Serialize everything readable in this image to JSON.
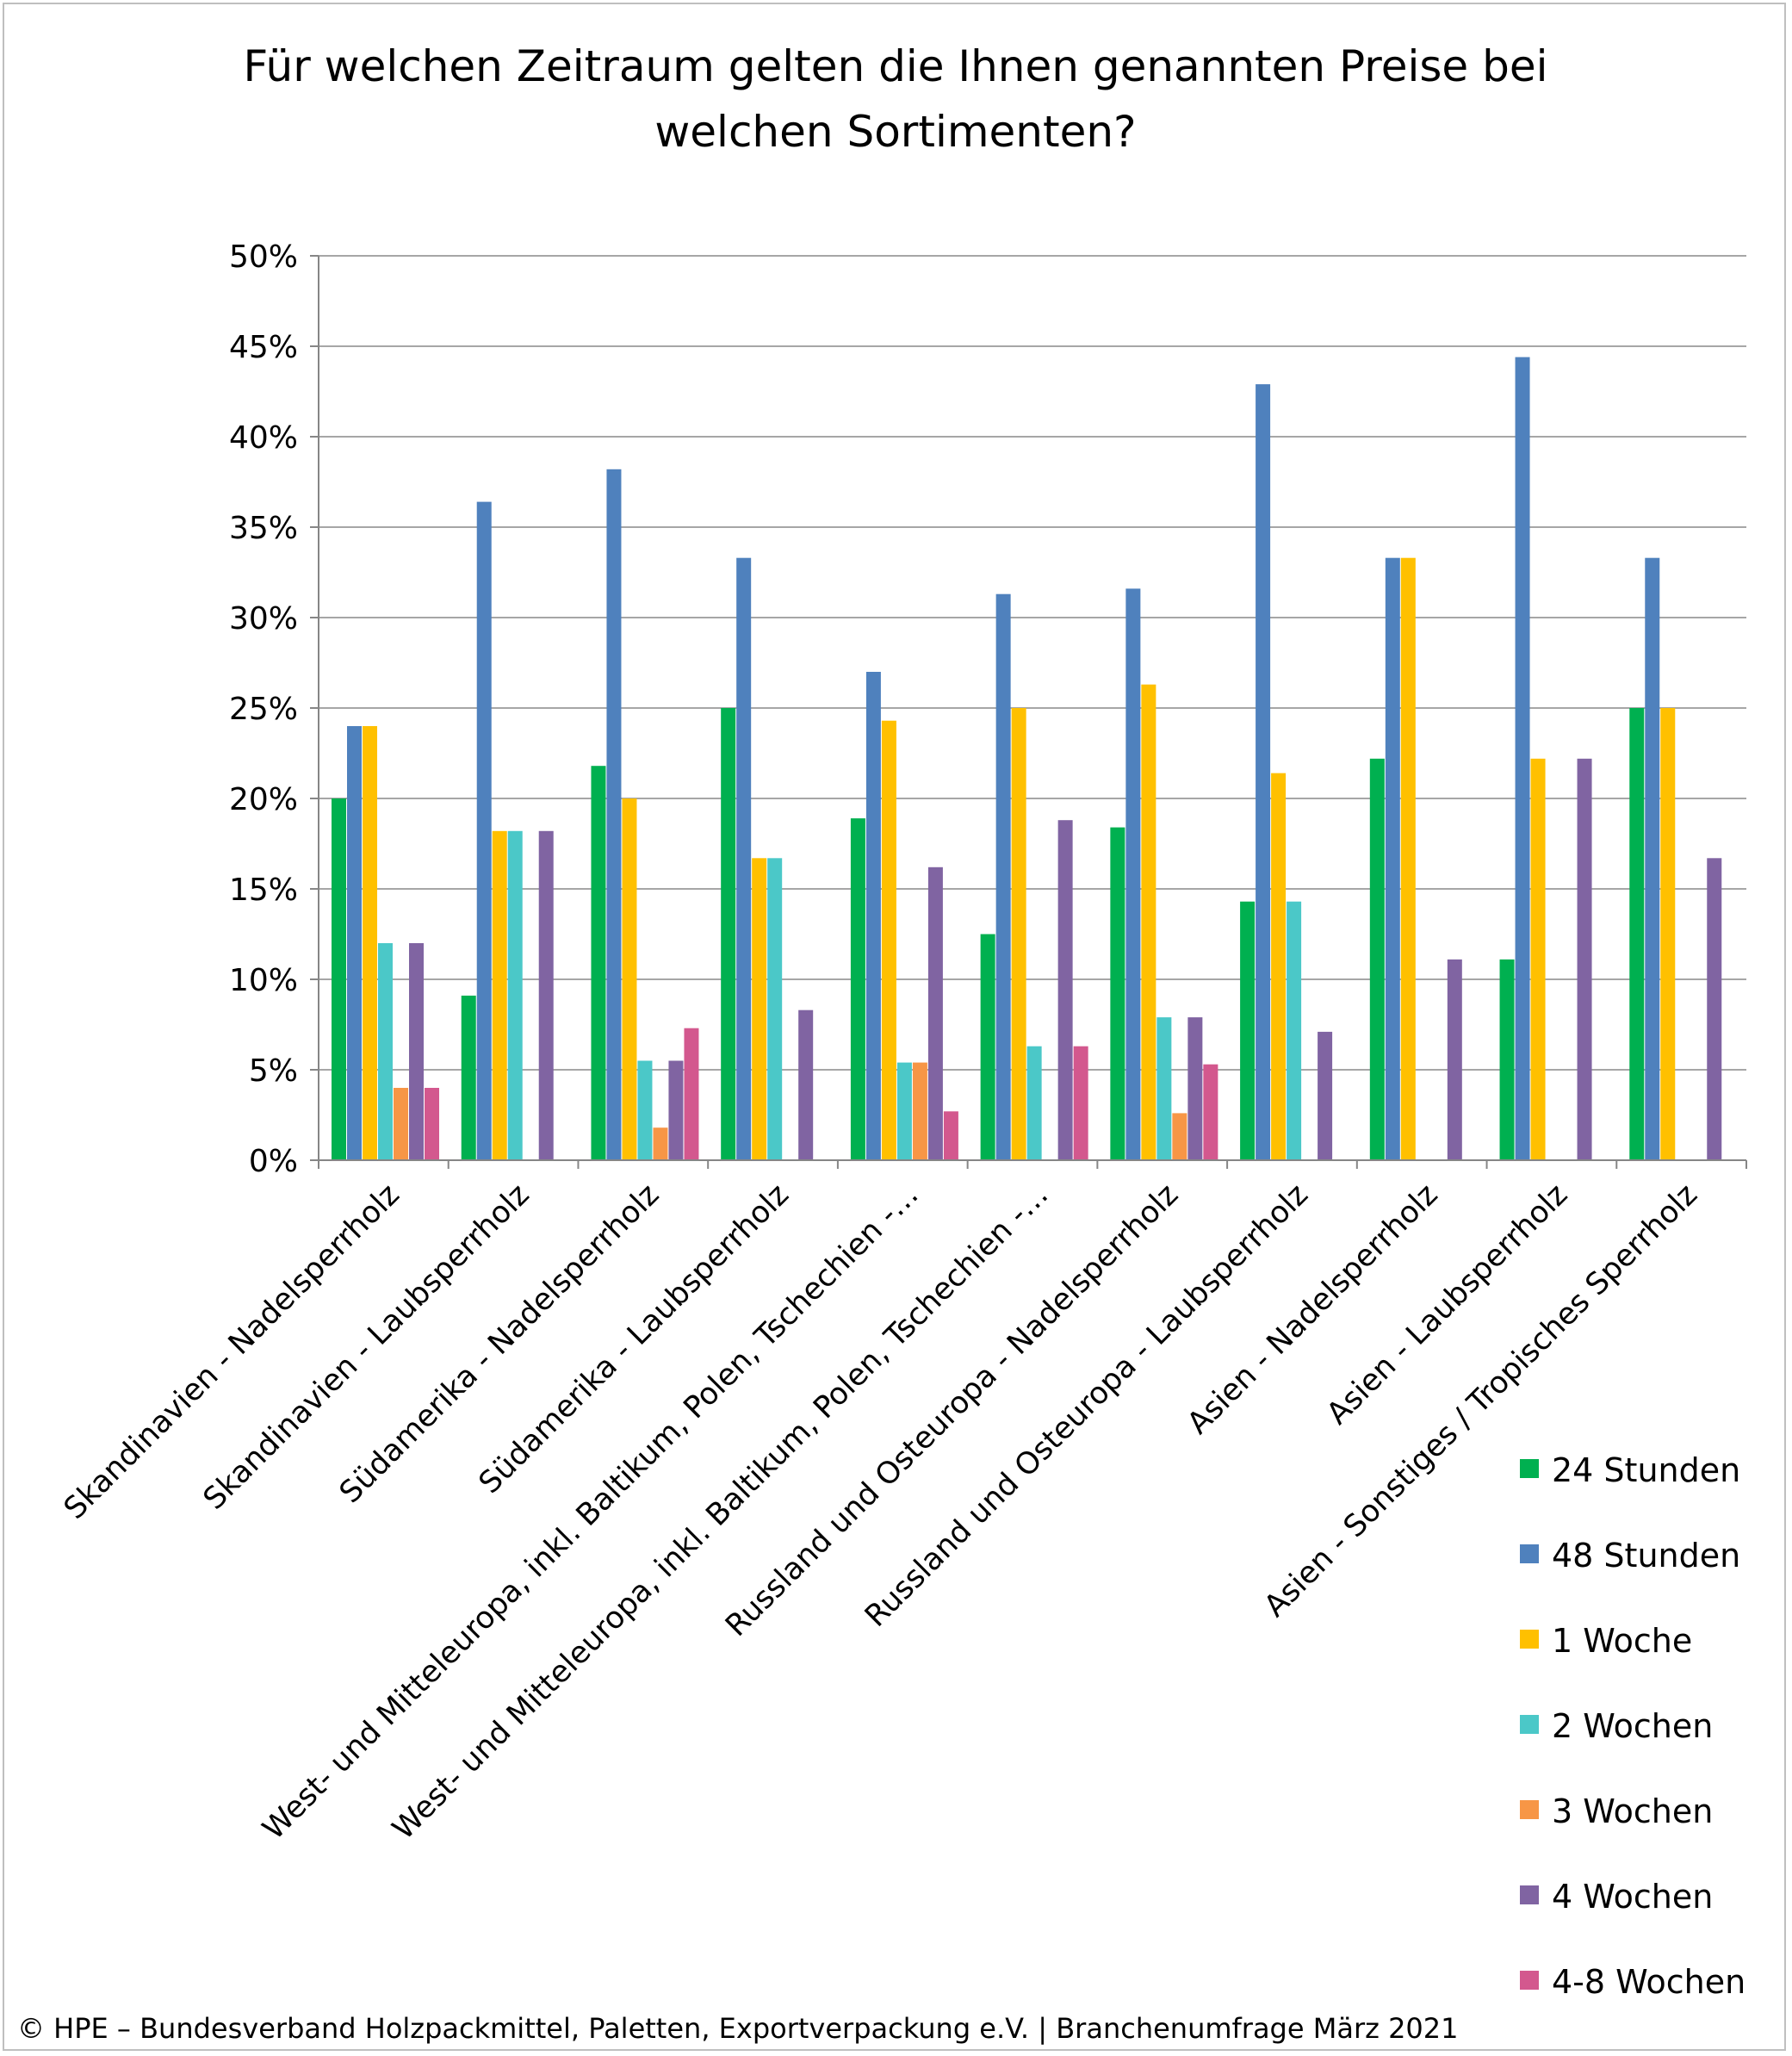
{
  "chart_data": {
    "type": "bar",
    "title_lines": [
      "Für welchen Zeitraum gelten die Ihnen genannten Preise bei",
      "welchen Sortimenten?"
    ],
    "xlabel": "",
    "ylabel": "",
    "ylim": [
      0,
      0.5
    ],
    "yticks": [
      "0%",
      "5%",
      "10%",
      "15%",
      "20%",
      "25%",
      "30%",
      "35%",
      "40%",
      "45%",
      "50%"
    ],
    "grid": true,
    "legend_position": "right",
    "categories": [
      "Skandinavien - Nadelsperrholz",
      "Skandinavien - Laubsperrholz",
      "Südamerika - Nadelsperrholz",
      "Südamerika - Laubsperrholz",
      "West- und Mitteleuropa, inkl. Baltikum, Polen, Tschechien -…",
      "West- und Mitteleuropa, inkl. Baltikum, Polen, Tschechien -…",
      "Russland und Osteuropa - Nadelsperrholz",
      "Russland und Osteuropa - Laubsperrholz",
      "Asien - Nadelsperrholz",
      "Asien - Laubsperrholz",
      "Asien - Sonstiges / Tropisches Sperrholz"
    ],
    "series": [
      {
        "name": "24 Stunden",
        "color": "#00b050",
        "values": [
          0.2,
          0.091,
          0.218,
          0.25,
          0.189,
          0.125,
          0.184,
          0.143,
          0.222,
          0.111,
          0.25
        ]
      },
      {
        "name": "48 Stunden",
        "color": "#4f81bd",
        "values": [
          0.24,
          0.364,
          0.382,
          0.333,
          0.27,
          0.313,
          0.316,
          0.429,
          0.333,
          0.444,
          0.333
        ]
      },
      {
        "name": "1 Woche",
        "color": "#ffc000",
        "values": [
          0.24,
          0.182,
          0.2,
          0.167,
          0.243,
          0.25,
          0.263,
          0.214,
          0.333,
          0.222,
          0.25
        ]
      },
      {
        "name": "2 Wochen",
        "color": "#4bc8c8",
        "values": [
          0.12,
          0.182,
          0.055,
          0.167,
          0.054,
          0.063,
          0.079,
          0.143,
          0,
          0,
          0
        ]
      },
      {
        "name": "3 Wochen",
        "color": "#f79646",
        "values": [
          0.04,
          0,
          0.018,
          0,
          0.054,
          0,
          0.026,
          0,
          0,
          0,
          0
        ]
      },
      {
        "name": "4 Wochen",
        "color": "#8064a2",
        "values": [
          0.12,
          0.182,
          0.055,
          0.083,
          0.162,
          0.188,
          0.079,
          0.071,
          0.111,
          0.222,
          0.167
        ]
      },
      {
        "name": "4-8 Wochen",
        "color": "#d3588e",
        "values": [
          0.04,
          0,
          0.073,
          0,
          0.027,
          0.063,
          0.053,
          0,
          0,
          0,
          0
        ]
      }
    ]
  },
  "footer": "© HPE – Bundesverband Holzpackmittel, Paletten, Exportverpackung e.V.  | Branchenumfrage März 2021"
}
